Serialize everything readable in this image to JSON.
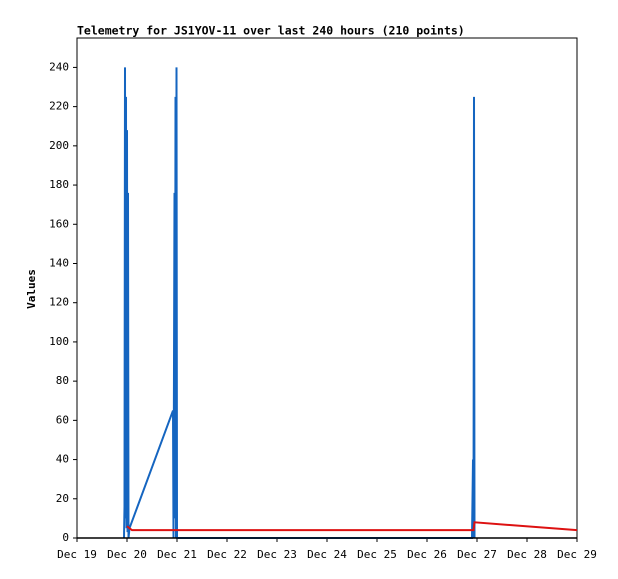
{
  "chart_data": {
    "type": "line",
    "title": "Telemetry for JS1YOV-11 over last 240 hours (210 points)",
    "y_label": "Values",
    "xlim": [
      19,
      29
    ],
    "xticks": [
      {
        "value": 19,
        "label": "Dec 19"
      },
      {
        "value": 20,
        "label": "Dec 20"
      },
      {
        "value": 21,
        "label": "Dec 21"
      },
      {
        "value": 22,
        "label": "Dec 22"
      },
      {
        "value": 23,
        "label": "Dec 23"
      },
      {
        "value": 24,
        "label": "Dec 24"
      },
      {
        "value": 25,
        "label": "Dec 25"
      },
      {
        "value": 26,
        "label": "Dec 26"
      },
      {
        "value": 27,
        "label": "Dec 27"
      },
      {
        "value": 28,
        "label": "Dec 28"
      },
      {
        "value": 29,
        "label": "Dec 29"
      }
    ],
    "ylim": [
      0,
      255
    ],
    "yticks": [
      0,
      20,
      40,
      60,
      80,
      100,
      120,
      140,
      160,
      180,
      200,
      220,
      240
    ],
    "series": [
      {
        "color": "#1565c0",
        "x": [
          19.94,
          19.95,
          19.96,
          19.97,
          19.98,
          19.99,
          20.0,
          20.01,
          20.02,
          20.03,
          20.05,
          20.92,
          20.93,
          20.95,
          20.96,
          20.97,
          20.98,
          20.99,
          21.0,
          26.9,
          26.92,
          26.93,
          26.94,
          26.95
        ],
        "values": [
          0,
          16,
          240,
          10,
          225,
          5,
          208,
          3,
          176,
          0,
          5,
          65,
          0,
          176,
          10,
          225,
          0,
          240,
          0,
          0,
          40,
          0,
          225,
          0
        ]
      },
      {
        "color": "#dd1111",
        "x": [
          20.0,
          20.1,
          26.93,
          26.95,
          29
        ],
        "values": [
          6,
          4,
          4,
          8,
          4
        ]
      }
    ]
  }
}
